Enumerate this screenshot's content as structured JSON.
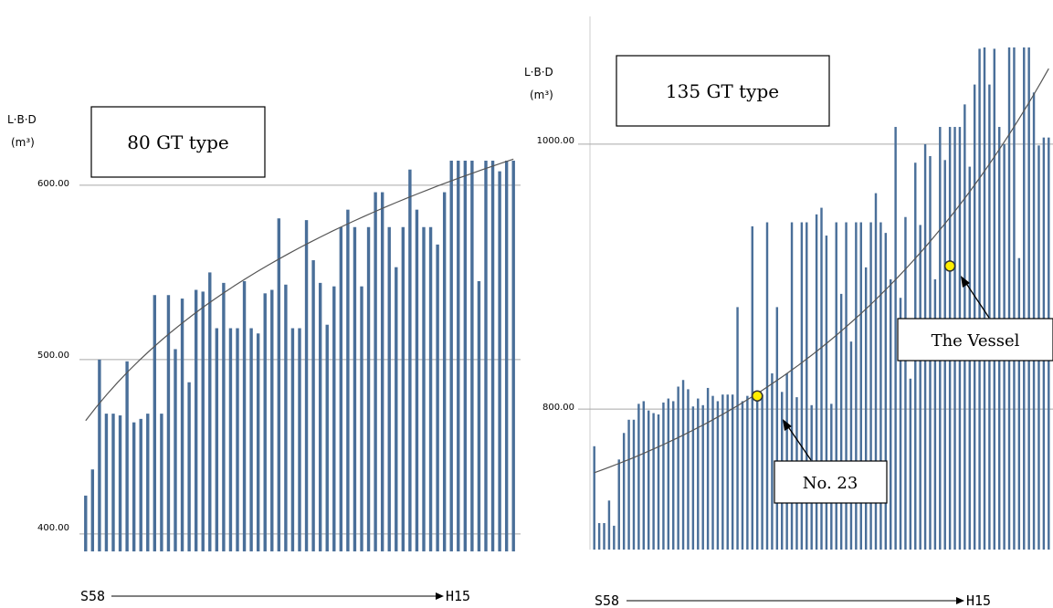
{
  "chart_data": [
    {
      "type": "bar",
      "title": "80 GT type",
      "ylabel": "L·B·D",
      "ylabel_unit": "(m³)",
      "x_start_label": "S58",
      "x_end_label": "H15",
      "ylim": [
        390,
        612
      ],
      "yticks": [
        "400.00",
        "500.00",
        "600.00"
      ],
      "ytick_values": [
        400,
        500,
        600
      ],
      "grid": "horizontal",
      "series": [
        {
          "values": [
            422,
            437,
            500,
            469,
            469,
            468,
            499,
            464,
            466,
            469,
            537,
            469,
            537,
            506,
            535,
            487,
            540,
            539,
            550,
            518,
            544,
            518,
            518,
            545,
            518,
            515,
            538,
            540,
            581,
            543,
            518,
            518,
            580,
            557,
            544,
            520,
            542,
            576,
            586,
            576,
            542,
            576,
            596,
            596,
            576,
            553,
            576,
            609,
            586,
            576,
            576,
            566,
            596,
            616,
            616,
            616,
            616,
            545,
            616,
            636,
            608,
            626,
            636
          ]
        },
        {
          "type": "line",
          "values_at_ends": [
            465,
            615
          ]
        }
      ]
    },
    {
      "type": "bar",
      "title": "135 GT type",
      "ylabel": "L·B·D",
      "ylabel_unit": "(m³)",
      "x_start_label": "S58",
      "x_end_label": "H15",
      "ylim": [
        694,
        1084
      ],
      "yticks": [
        "800.00",
        "1000.00"
      ],
      "ytick_values": [
        800,
        1000
      ],
      "grid": "horizontal",
      "series": [
        {
          "values": [
            772,
            714,
            714,
            731,
            712,
            762,
            782,
            792,
            792,
            804,
            806,
            799,
            797,
            796,
            805,
            808,
            806,
            817,
            822,
            815,
            802,
            808,
            803,
            816,
            810,
            806,
            811,
            811,
            811,
            877,
            806,
            810,
            938,
            812,
            811,
            941,
            827,
            877,
            813,
            827,
            941,
            809,
            941,
            941,
            803,
            947,
            952,
            931,
            804,
            941,
            887,
            941,
            851,
            941,
            941,
            907,
            941,
            963,
            941,
            933,
            898,
            1013,
            884,
            945,
            823,
            986,
            939,
            1000,
            991,
            898,
            1013,
            988,
            1013,
            1013,
            1013,
            1030,
            983,
            1045,
            1072,
            1073,
            1045,
            1072,
            1013,
            1000,
            1073,
            1073,
            914,
            1073,
            1073,
            1039,
            999,
            1005,
            1005
          ],
          "points": [
            {
              "index": 33,
              "value": 810,
              "label": "No. 23"
            },
            {
              "index": 72,
              "value": 908,
              "label": "The Vessel"
            }
          ]
        },
        {
          "type": "line",
          "values_at_ends": [
            752,
            1057
          ]
        }
      ]
    }
  ],
  "colors": {
    "bar": "#4a6f99",
    "trend": "#555555",
    "grid": "#a9a9a9",
    "marker_fill": "#ffee00",
    "marker_stroke": "#333333"
  }
}
